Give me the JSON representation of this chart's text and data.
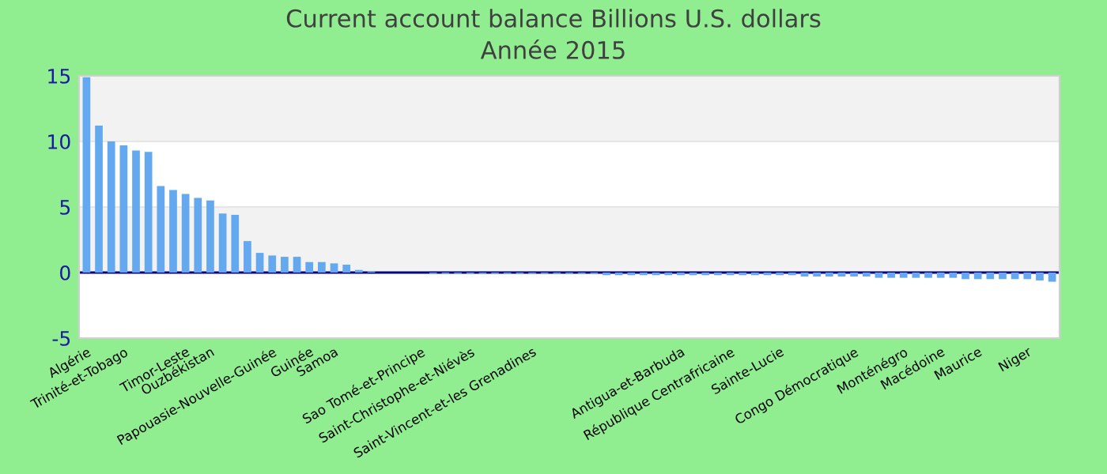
{
  "chart_data": {
    "type": "bar",
    "title": "Current account balance Billions U.S. dollars",
    "subtitle": "Année 2015",
    "categories": [
      "Algérie",
      null,
      null,
      "Trinité-et-Tobago",
      null,
      null,
      null,
      null,
      "Timor-Leste",
      null,
      "Ouzbékistan",
      null,
      null,
      null,
      null,
      "Papouasie-Nouvelle-Guinée",
      null,
      null,
      "Guinée",
      null,
      "Samoa",
      null,
      null,
      null,
      null,
      null,
      null,
      "Sao Tomé-et-Principe",
      null,
      null,
      null,
      "Saint-Christophe-et-Niévès",
      null,
      null,
      null,
      null,
      "Saint-Vincent-et-les Grenadines",
      null,
      null,
      null,
      null,
      null,
      null,
      null,
      null,
      null,
      null,
      null,
      "Antigua-et-Barbuda",
      null,
      null,
      null,
      "République Centrafricaine",
      null,
      null,
      null,
      "Sainte-Lucie",
      null,
      null,
      null,
      null,
      null,
      "Congo Démocratique",
      null,
      null,
      null,
      "Monténégro",
      null,
      null,
      "Macédoine",
      null,
      null,
      "Maurice",
      null,
      null,
      null,
      "Niger",
      null,
      null
    ],
    "values": [
      14.9,
      11.2,
      10.0,
      9.7,
      9.3,
      9.2,
      6.6,
      6.3,
      6.0,
      5.7,
      5.5,
      4.5,
      4.4,
      2.4,
      1.5,
      1.3,
      1.2,
      1.2,
      0.8,
      0.8,
      0.7,
      0.6,
      0.2,
      0.1,
      0,
      0,
      0,
      0,
      -0.1,
      -0.1,
      -0.1,
      -0.1,
      -0.1,
      -0.1,
      -0.1,
      -0.1,
      -0.1,
      -0.1,
      -0.1,
      -0.1,
      -0.1,
      -0.1,
      -0.2,
      -0.2,
      -0.2,
      -0.2,
      -0.2,
      -0.2,
      -0.2,
      -0.2,
      -0.2,
      -0.2,
      -0.2,
      -0.2,
      -0.2,
      -0.2,
      -0.2,
      -0.2,
      -0.3,
      -0.3,
      -0.3,
      -0.3,
      -0.3,
      -0.3,
      -0.4,
      -0.4,
      -0.4,
      -0.4,
      -0.4,
      -0.4,
      -0.4,
      -0.5,
      -0.5,
      -0.5,
      -0.5,
      -0.5,
      -0.5,
      -0.6,
      -0.7
    ],
    "color": "#64a8f0",
    "ylim": [
      -5,
      15
    ],
    "yticks": [
      -5,
      0,
      5,
      10,
      15
    ],
    "grid": "y",
    "ref_lines": [
      {
        "axis": "y",
        "value": 0,
        "color": "#000080"
      }
    ]
  }
}
